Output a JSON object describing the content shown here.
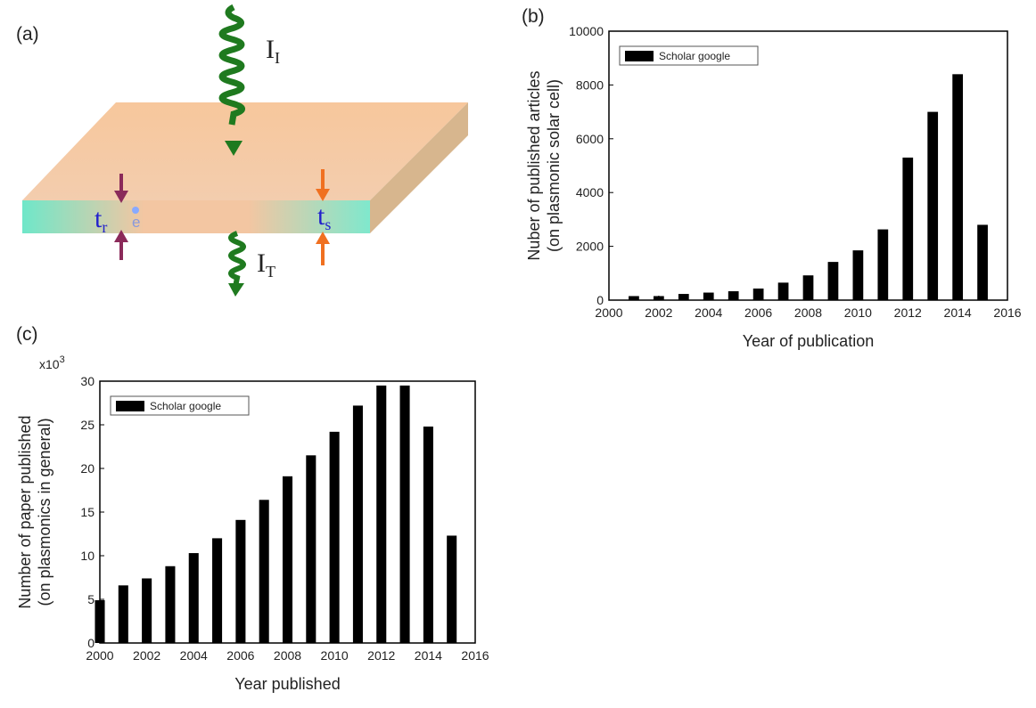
{
  "diagram": {
    "label": "(a)",
    "incident": {
      "main": "I",
      "sub": "I"
    },
    "transmitted": {
      "main": "I",
      "sub": "T"
    },
    "left_thickness": {
      "main": "t",
      "sub": "r"
    },
    "electron": "e",
    "right_thickness": {
      "main": "t",
      "sub": "s"
    }
  },
  "chart_data": [
    {
      "type": "bar",
      "label": "(b)",
      "xlabel": "Year of publication",
      "ylabel": [
        "Nuber of published articles",
        "(on plasmonic solar cell)"
      ],
      "x": [
        2001,
        2002,
        2003,
        2004,
        2005,
        2006,
        2007,
        2008,
        2009,
        2010,
        2011,
        2012,
        2013,
        2014,
        2015
      ],
      "series": [
        {
          "name": "Scholar google",
          "color": "#000000",
          "values": [
            150,
            150,
            230,
            280,
            330,
            430,
            650,
            920,
            1420,
            1850,
            2630,
            5300,
            7000,
            8400,
            2800
          ]
        }
      ],
      "xlim": [
        2000,
        2016
      ],
      "xticks": [
        2000,
        2002,
        2004,
        2006,
        2008,
        2010,
        2012,
        2014,
        2016
      ],
      "ylim": [
        0,
        10000
      ],
      "yticks": [
        0,
        2000,
        4000,
        6000,
        8000,
        10000
      ],
      "legend": "upper left"
    },
    {
      "type": "bar",
      "label": "(c)",
      "xlabel": "Year published",
      "ylabel": [
        "Number of paper published",
        "(on plasmonics in general)"
      ],
      "y_multiplier": {
        "base": "x10",
        "exponent": "3"
      },
      "x": [
        2000,
        2001,
        2002,
        2003,
        2004,
        2005,
        2006,
        2007,
        2008,
        2009,
        2010,
        2011,
        2012,
        2013,
        2014,
        2015
      ],
      "series": [
        {
          "name": "Scholar google",
          "color": "#000000",
          "values": [
            4.9,
            6.6,
            7.4,
            8.8,
            10.3,
            12.0,
            14.1,
            16.4,
            19.1,
            21.5,
            24.2,
            27.2,
            29.5,
            29.5,
            24.8,
            12.3
          ]
        }
      ],
      "xlim": [
        2000,
        2016
      ],
      "xticks": [
        2000,
        2002,
        2004,
        2006,
        2008,
        2010,
        2012,
        2014,
        2016
      ],
      "ylim": [
        0,
        30
      ],
      "yticks": [
        0,
        5,
        10,
        15,
        20,
        25,
        30
      ],
      "legend": "upper left"
    }
  ]
}
